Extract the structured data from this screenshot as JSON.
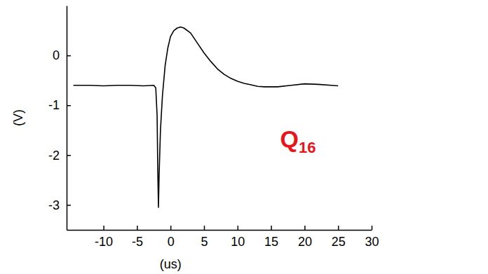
{
  "chart_data": {
    "type": "line",
    "x_label": "(us)",
    "y_label": "(V)",
    "annotation": "Q16",
    "color": "#000000",
    "x": [
      -14.5,
      -12,
      -10,
      -8,
      -6,
      -4,
      -2.5,
      -2.2,
      -2.0,
      -1.9,
      -1.8,
      -1.7,
      -1.5,
      -1.2,
      -0.8,
      -0.4,
      0,
      0.5,
      1,
      1.5,
      2,
      3,
      4,
      5,
      6,
      7,
      8,
      9,
      10,
      11,
      12,
      13,
      14,
      16,
      18,
      20,
      22,
      24,
      25
    ],
    "values": [
      -0.6,
      -0.6,
      -0.61,
      -0.6,
      -0.6,
      -0.61,
      -0.6,
      -0.65,
      -1.2,
      -2.3,
      -3.05,
      -2.4,
      -1.5,
      -0.8,
      -0.2,
      0.15,
      0.38,
      0.5,
      0.55,
      0.57,
      0.55,
      0.45,
      0.25,
      0.05,
      -0.12,
      -0.27,
      -0.38,
      -0.46,
      -0.52,
      -0.56,
      -0.59,
      -0.62,
      -0.63,
      -0.63,
      -0.6,
      -0.57,
      -0.58,
      -0.6,
      -0.61
    ],
    "xlim": [
      -15.5,
      30
    ],
    "xticks": [
      -10,
      -5,
      0,
      5,
      10,
      15,
      20,
      25,
      30
    ],
    "ylim": [
      -3.5,
      1
    ],
    "yticks": [
      -3,
      -2,
      -1,
      0
    ]
  }
}
